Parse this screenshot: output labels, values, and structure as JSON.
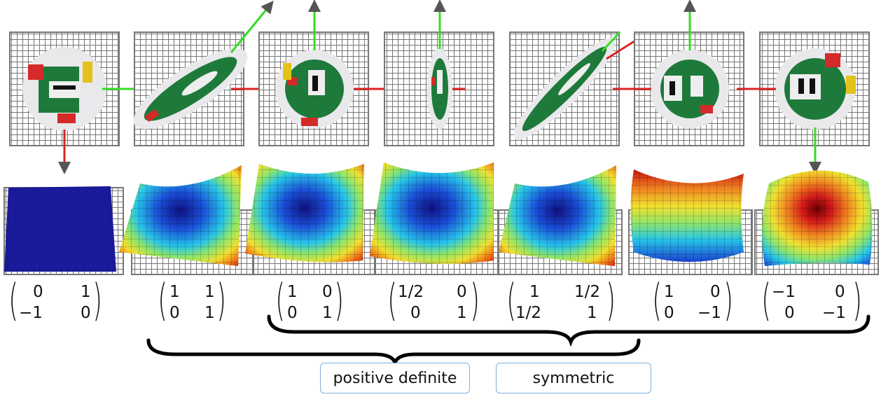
{
  "matrices": [
    {
      "a": "0",
      "b": "1",
      "c": "−1",
      "d": "0"
    },
    {
      "a": "1",
      "b": "1",
      "c": "0",
      "d": "1"
    },
    {
      "a": "1",
      "b": "0",
      "c": "0",
      "d": "1"
    },
    {
      "a": "1/2",
      "b": "0",
      "c": "0",
      "d": "1"
    },
    {
      "a": "1",
      "b": "1/2",
      "c": "1/2",
      "d": "1"
    },
    {
      "a": "1",
      "b": "0",
      "c": "0",
      "d": "−1"
    },
    {
      "a": "−1",
      "b": "0",
      "c": "0",
      "d": "−1"
    }
  ],
  "labels": {
    "positive_definite": "positive definite",
    "symmetric": "symmetric"
  },
  "colors": {
    "axis_green": "#33dd22",
    "axis_red": "#dd2222",
    "grid": "#777777",
    "sprite_green": "#1e7a3a",
    "sprite_red": "#d42a2a",
    "sprite_yellow": "#e3c21c",
    "surface_blue": "#1a1a9a",
    "surface_red": "#d21a1a",
    "label_border": "#7fb0db"
  }
}
